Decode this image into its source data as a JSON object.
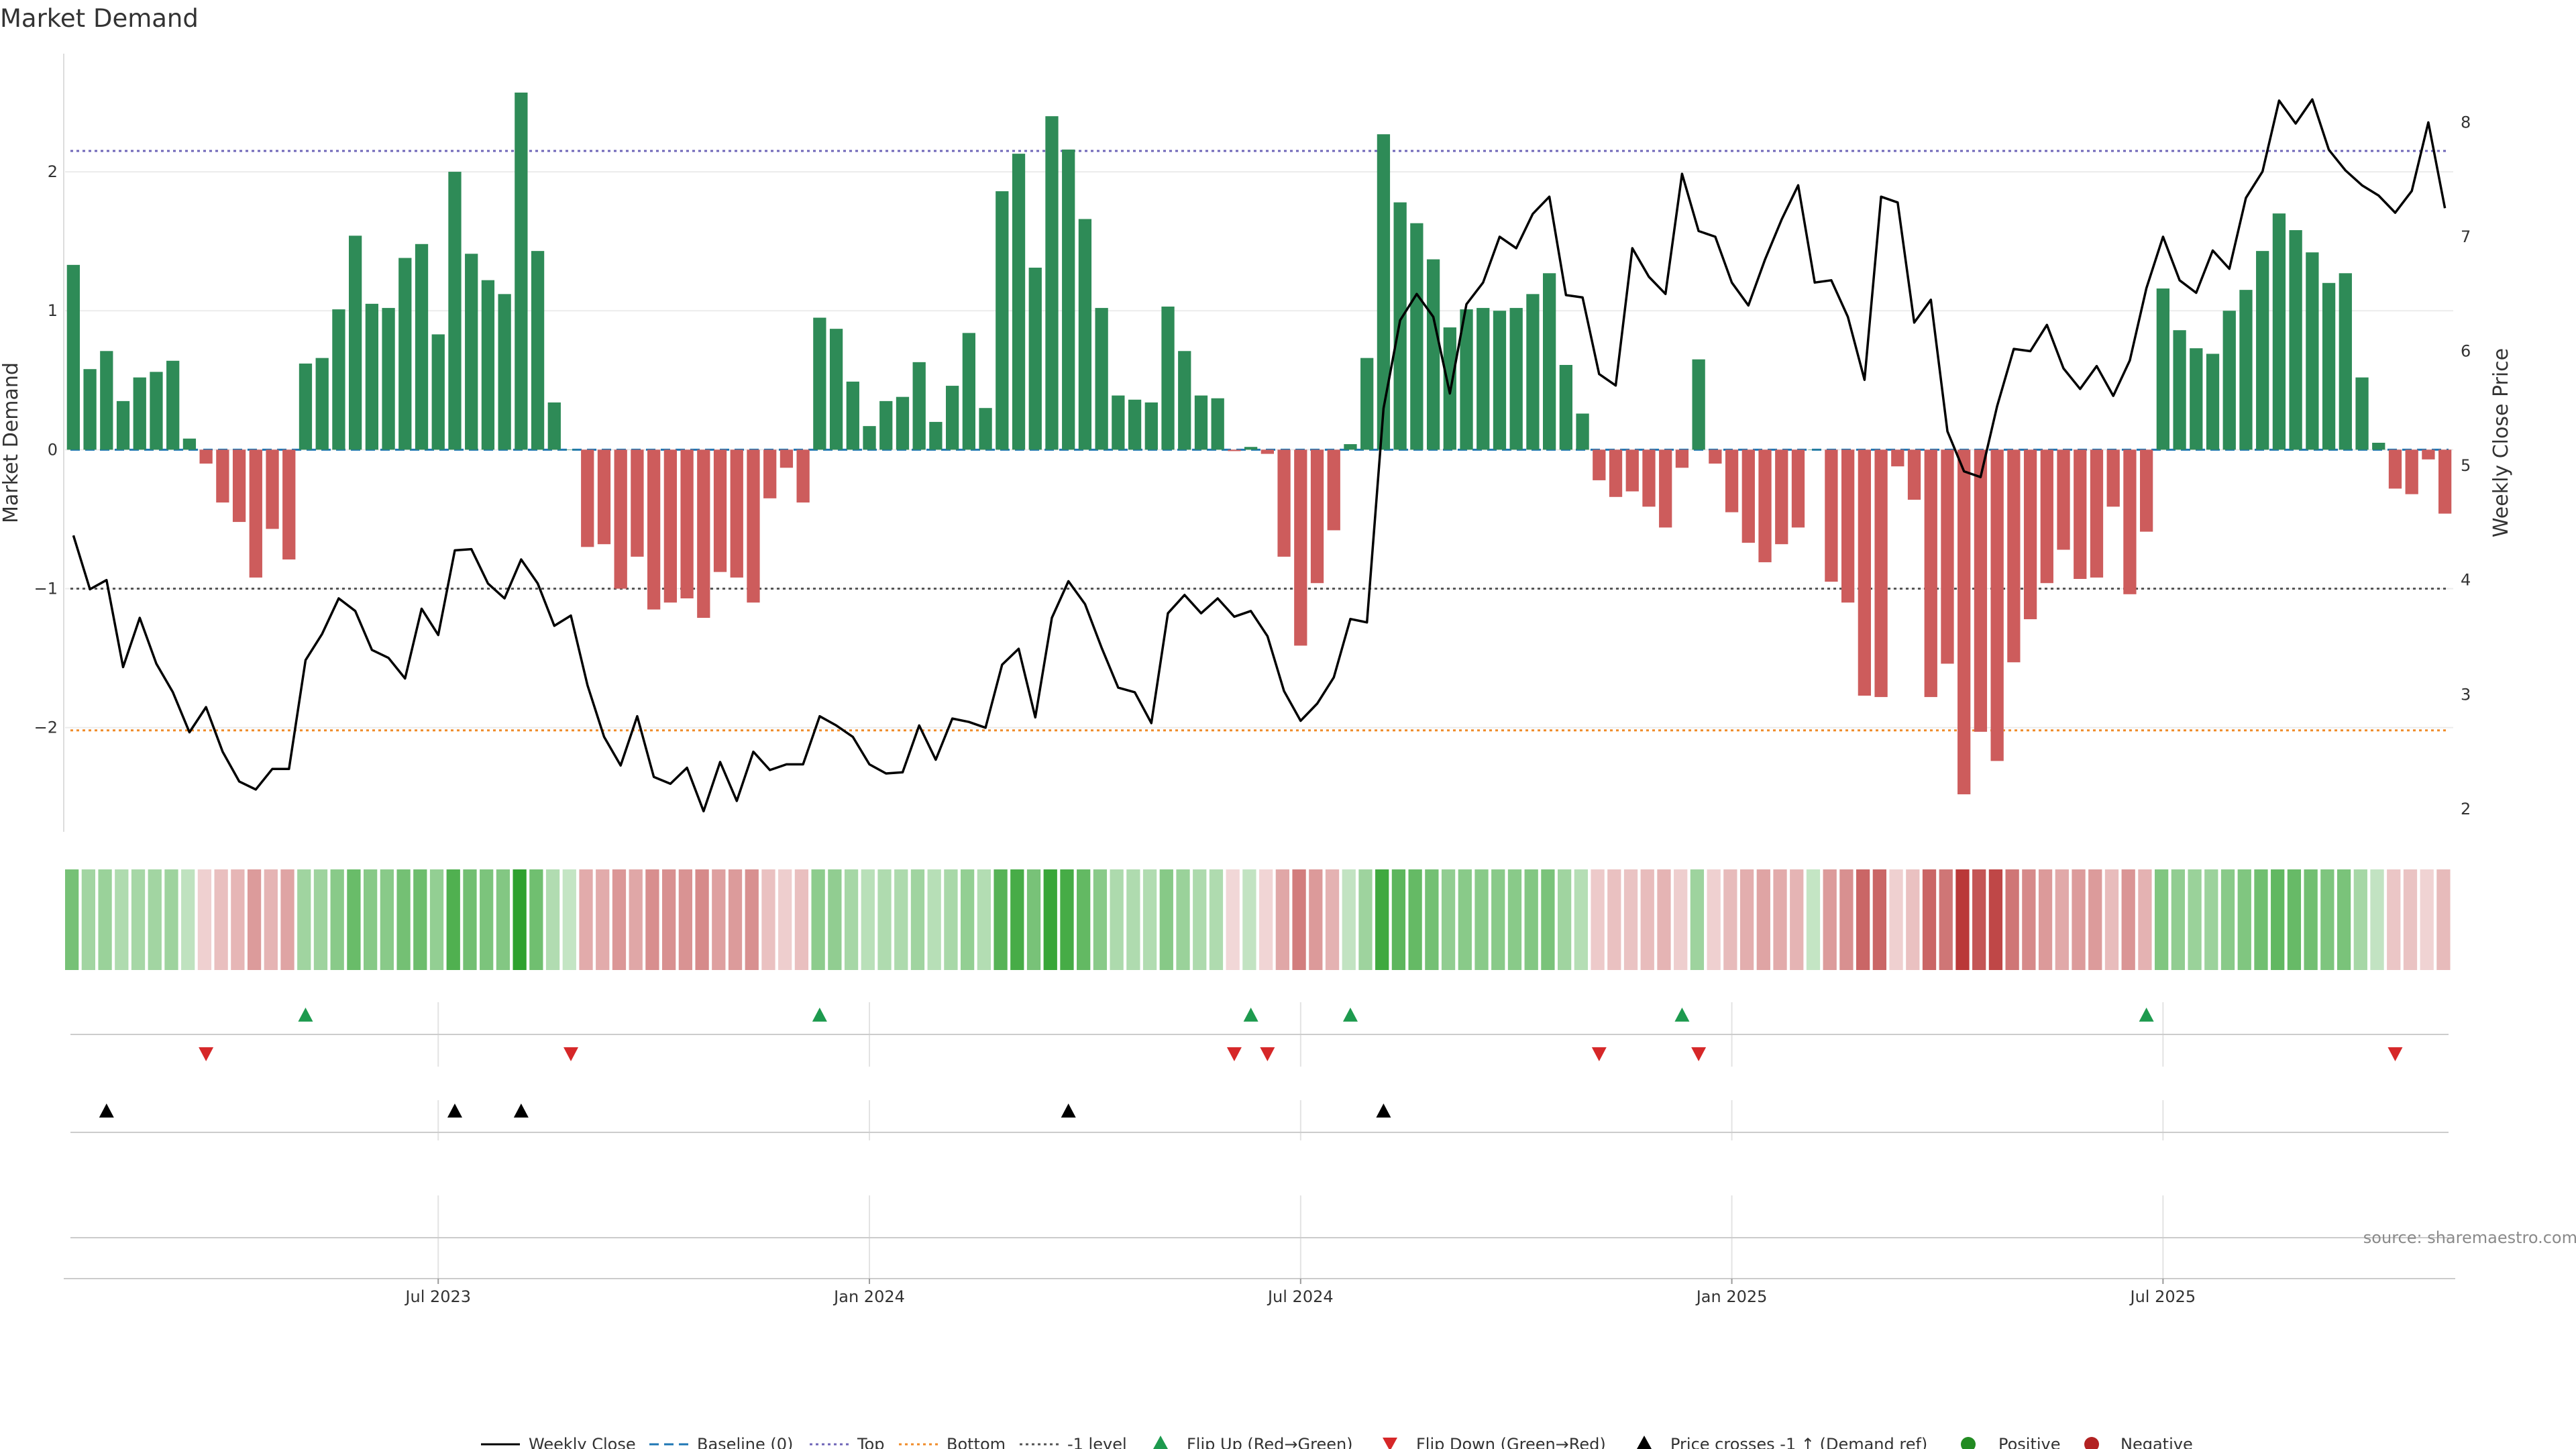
{
  "colors": {
    "positive_bar": "#2e8b57",
    "negative_bar": "#cd5c5c",
    "price_line": "#000000",
    "baseline": "#1f77b4",
    "top_line": "#6f66b8",
    "bottom_line": "#f08c2a",
    "minus1_line": "#555555",
    "flip_up": "#1d9a4e",
    "flip_down": "#d62728",
    "cross_marker": "#000000",
    "positive_dot": "#228b22",
    "negative_dot": "#b22222"
  },
  "chart_data": {
    "type": "bar",
    "title": "Market Demand",
    "ylabel": "Market Demand",
    "ylabel_right": "Weekly Close Price",
    "source": "source: sharemaestro.com",
    "ylim": [
      -2.75,
      2.85
    ],
    "ylim_right": [
      1.8,
      8.6
    ],
    "yticks": [
      {
        "v": 2,
        "label": "2"
      },
      {
        "v": 1,
        "label": "1"
      },
      {
        "v": 0,
        "label": "0"
      },
      {
        "v": -1,
        "label": "−1"
      },
      {
        "v": -2,
        "label": "−2"
      }
    ],
    "yticks_right": [
      {
        "v": 2,
        "label": "2"
      },
      {
        "v": 3,
        "label": "3"
      },
      {
        "v": 4,
        "label": "4"
      },
      {
        "v": 5,
        "label": "5"
      },
      {
        "v": 6,
        "label": "6"
      },
      {
        "v": 7,
        "label": "7"
      },
      {
        "v": 8,
        "label": "8"
      }
    ],
    "x_ticks": [
      {
        "index": 22,
        "label": "Jul 2023"
      },
      {
        "index": 48,
        "label": "Jan 2024"
      },
      {
        "index": 74,
        "label": "Jul 2024"
      },
      {
        "index": 100,
        "label": "Jan 2025"
      },
      {
        "index": 126,
        "label": "Jul 2025"
      }
    ],
    "reference_lines": {
      "top": 2.15,
      "bottom": -2.02,
      "minus1": -1.0,
      "baseline": 0
    },
    "demand": [
      1.33,
      0.58,
      0.71,
      0.35,
      0.52,
      0.56,
      0.64,
      0.08,
      -0.1,
      -0.38,
      -0.52,
      -0.92,
      -0.57,
      -0.79,
      0.62,
      0.66,
      1.01,
      1.54,
      1.05,
      1.02,
      1.38,
      1.48,
      0.83,
      2.0,
      1.41,
      1.22,
      1.12,
      2.57,
      1.43,
      0.34,
      0.0,
      -0.7,
      -0.68,
      -1.0,
      -0.77,
      -1.15,
      -1.1,
      -1.07,
      -1.21,
      -0.88,
      -0.92,
      -1.1,
      -0.35,
      -0.13,
      -0.38,
      0.95,
      0.87,
      0.49,
      0.17,
      0.35,
      0.38,
      0.63,
      0.2,
      0.46,
      0.84,
      0.3,
      1.86,
      2.13,
      1.31,
      2.4,
      2.16,
      1.66,
      1.02,
      0.39,
      0.36,
      0.34,
      1.03,
      0.71,
      0.39,
      0.37,
      -0.01,
      0.02,
      -0.03,
      -0.77,
      -1.41,
      -0.96,
      -0.58,
      0.04,
      0.66,
      2.27,
      1.78,
      1.63,
      1.37,
      0.88,
      1.01,
      1.02,
      1.0,
      1.02,
      1.12,
      1.27,
      0.61,
      0.26,
      -0.22,
      -0.34,
      -0.3,
      -0.41,
      -0.56,
      -0.13,
      0.65,
      -0.1,
      -0.45,
      -0.67,
      -0.81,
      -0.68,
      -0.56,
      0.0,
      -0.95,
      -1.1,
      -1.77,
      -1.78,
      -0.12,
      -0.36,
      -1.78,
      -1.54,
      -2.48,
      -2.03,
      -2.24,
      -1.53,
      -1.22,
      -0.96,
      -0.72,
      -0.93,
      -0.92,
      -0.41,
      -1.04,
      -0.59,
      1.16,
      0.86,
      0.73,
      0.69,
      1.0,
      1.15,
      1.43,
      1.7,
      1.58,
      1.42,
      1.2,
      1.27,
      0.52,
      0.05,
      -0.28,
      -0.32,
      -0.07,
      -0.46
    ],
    "price": [
      4.39,
      3.92,
      4.0,
      3.24,
      3.67,
      3.27,
      3.02,
      2.67,
      2.89,
      2.5,
      2.24,
      2.17,
      2.35,
      2.35,
      3.3,
      3.53,
      3.84,
      3.73,
      3.39,
      3.32,
      3.14,
      3.75,
      3.52,
      4.26,
      4.27,
      3.97,
      3.84,
      4.18,
      3.97,
      3.6,
      3.69,
      3.08,
      2.63,
      2.38,
      2.81,
      2.28,
      2.22,
      2.36,
      1.98,
      2.41,
      2.07,
      2.5,
      2.34,
      2.39,
      2.39,
      2.81,
      2.73,
      2.63,
      2.39,
      2.31,
      2.32,
      2.73,
      2.43,
      2.79,
      2.76,
      2.71,
      3.26,
      3.4,
      2.8,
      3.67,
      3.99,
      3.79,
      3.41,
      3.06,
      3.02,
      2.75,
      3.71,
      3.87,
      3.71,
      3.84,
      3.68,
      3.73,
      3.51,
      3.03,
      2.77,
      2.92,
      3.15,
      3.66,
      3.63,
      5.5,
      6.27,
      6.5,
      6.3,
      5.63,
      6.41,
      6.6,
      7.0,
      6.9,
      7.2,
      7.35,
      6.49,
      6.47,
      5.8,
      5.7,
      6.9,
      6.65,
      6.5,
      7.55,
      7.05,
      7.0,
      6.6,
      6.4,
      6.8,
      7.15,
      7.45,
      6.6,
      6.62,
      6.3,
      5.75,
      7.35,
      7.3,
      6.25,
      6.45,
      5.3,
      4.95,
      4.9,
      5.52,
      6.02,
      6.0,
      6.23,
      5.85,
      5.67,
      5.87,
      5.61,
      5.92,
      6.55,
      7.0,
      6.62,
      6.51,
      6.88,
      6.72,
      7.34,
      7.57,
      8.19,
      7.99,
      8.2,
      7.76,
      7.58,
      7.45,
      7.36,
      7.21,
      7.4,
      8.0,
      7.25
    ],
    "flip_up_indices": [
      14,
      45,
      71,
      77,
      97,
      125
    ],
    "flip_down_indices": [
      8,
      30,
      70,
      72,
      92,
      98,
      140
    ],
    "cross_indices": [
      2,
      23,
      27,
      60,
      79
    ]
  },
  "legend": [
    {
      "label": "Weekly Close",
      "icon": "solid-line"
    },
    {
      "label": "Baseline (0)",
      "icon": "dashed-line"
    },
    {
      "label": "Top",
      "icon": "dotted-line"
    },
    {
      "label": "Bottom",
      "icon": "dotted-line"
    },
    {
      "label": "-1 level",
      "icon": "dotted-line"
    },
    {
      "label": "Flip Up (Red→Green)",
      "icon": "triangle-up"
    },
    {
      "label": "Flip Down (Green→Red)",
      "icon": "triangle-down"
    },
    {
      "label": "Price crosses -1 ↑ (Demand ref)",
      "icon": "triangle-up"
    },
    {
      "label": "Positive",
      "icon": "dot"
    },
    {
      "label": "Negative",
      "icon": "dot"
    }
  ]
}
